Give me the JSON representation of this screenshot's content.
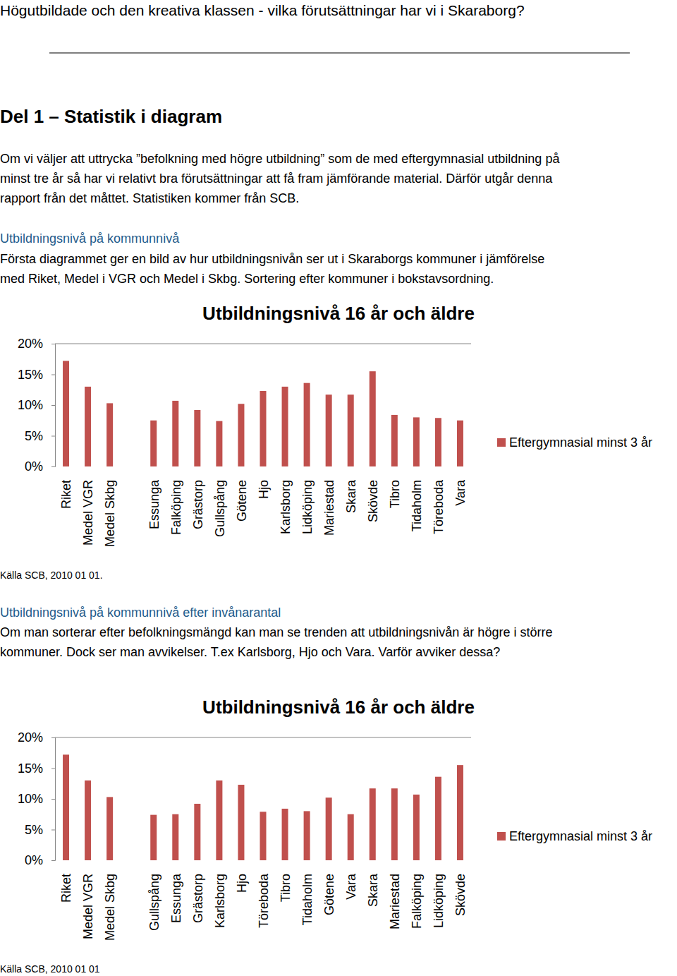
{
  "page": {
    "title": "Högutbildade och den kreativa klassen - vilka förutsättningar har vi i Skaraborg?",
    "heading": "Del 1 – Statistik i diagram",
    "intro": [
      "Om vi väljer att uttrycka ”befolkning med högre utbildning” som de med eftergymnasial utbildning på",
      "minst tre år så har vi relativt bra förutsättningar att få fram jämförande material. Därför utgår denna",
      "rapport från det måttet. Statistiken kommer från SCB."
    ],
    "blocks": [
      {
        "subheading": "Utbildningsnivå på kommunnivå",
        "text": [
          "Första diagrammet ger en bild av hur utbildningsnivån ser ut i Skaraborgs kommuner i jämförelse",
          "med Riket, Medel i VGR och Medel i Skbg. Sortering efter kommuner i bokstavsordning."
        ],
        "source": "Källa SCB, 2010 01 01."
      },
      {
        "subheading": "Utbildningsnivå på kommunnivå efter invånarantal",
        "text": [
          "Om man sorterar efter befolkningsmängd kan man se trenden att utbildningsnivån är högre i större",
          "kommuner. Dock ser man avvikelser. T.ex Karlsborg, Hjo och Vara. Varför avviker dessa?"
        ],
        "source": "Källa SCB, 2010 01 01"
      }
    ]
  },
  "chart_data": [
    {
      "type": "bar",
      "title": "Utbildningsnivå 16 år och äldre",
      "categories": [
        "Riket",
        "Medel VGR",
        "Medel Skbg",
        null,
        "Essunga",
        "Falköping",
        "Grästorp",
        "Gullspång",
        "Götene",
        "Hjo",
        "Karlsborg",
        "Lidköping",
        "Mariestad",
        "Skara",
        "Skövde",
        "Tibro",
        "Tidaholm",
        "Töreboda",
        "Vara"
      ],
      "series": [
        {
          "name": "Eftergymnasial minst 3 år",
          "color": "#c0504d",
          "values": [
            17.2,
            13.0,
            10.3,
            null,
            7.5,
            10.7,
            9.2,
            7.4,
            10.2,
            12.3,
            13.0,
            13.6,
            11.7,
            11.7,
            15.5,
            8.4,
            8.0,
            7.9,
            7.5
          ]
        }
      ],
      "ylim": [
        0,
        20
      ],
      "yticks": [
        {
          "value": 0,
          "label": "0%"
        },
        {
          "value": 5,
          "label": "5%"
        },
        {
          "value": 10,
          "label": "10%"
        },
        {
          "value": 15,
          "label": "15%"
        },
        {
          "value": 20,
          "label": "20%"
        }
      ],
      "grid": false,
      "legend": "right"
    },
    {
      "type": "bar",
      "title": "Utbildningsnivå 16 år och äldre",
      "categories": [
        "Riket",
        "Medel VGR",
        "Medel Skbg",
        null,
        "Gullspång",
        "Essunga",
        "Grästorp",
        "Karlsborg",
        "Hjo",
        "Töreboda",
        "Tibro",
        "Tidaholm",
        "Götene",
        "Vara",
        "Skara",
        "Mariestad",
        "Falköping",
        "Lidköping",
        "Skövde"
      ],
      "series": [
        {
          "name": "Eftergymnasial minst 3 år",
          "color": "#c0504d",
          "values": [
            17.2,
            13.0,
            10.3,
            null,
            7.4,
            7.5,
            9.2,
            13.0,
            12.3,
            7.9,
            8.4,
            8.0,
            10.2,
            7.5,
            11.7,
            11.7,
            10.7,
            13.6,
            15.5
          ]
        }
      ],
      "ylim": [
        0,
        20
      ],
      "yticks": [
        {
          "value": 0,
          "label": "0%"
        },
        {
          "value": 5,
          "label": "5%"
        },
        {
          "value": 10,
          "label": "10%"
        },
        {
          "value": 15,
          "label": "15%"
        },
        {
          "value": 20,
          "label": "20%"
        }
      ],
      "grid": false,
      "legend": "right"
    }
  ]
}
